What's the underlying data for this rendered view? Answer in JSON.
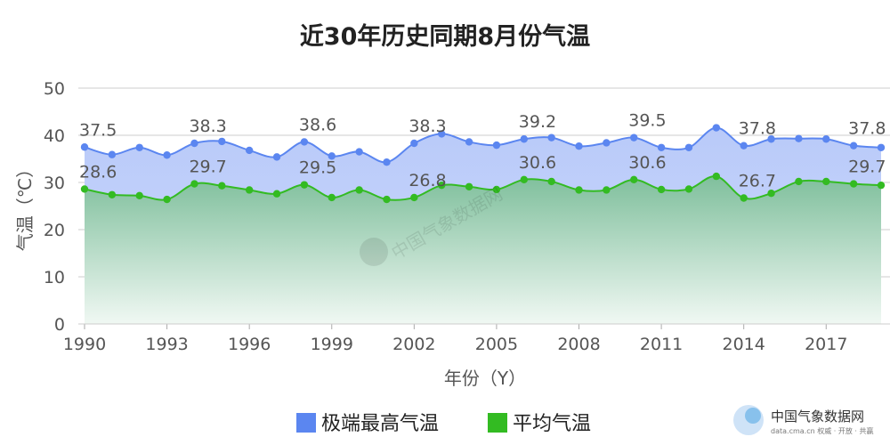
{
  "chart_data": {
    "type": "area",
    "title": "近30年历史同期8月份气温",
    "xlabel": "年份（Y）",
    "ylabel": "气温（℃）",
    "ylim": [
      0,
      50
    ],
    "yticks": [
      0,
      10,
      20,
      30,
      40,
      50
    ],
    "x": [
      1990,
      1991,
      1992,
      1993,
      1994,
      1995,
      1996,
      1997,
      1998,
      1999,
      2000,
      2001,
      2002,
      2003,
      2004,
      2005,
      2006,
      2007,
      2008,
      2009,
      2010,
      2011,
      2012,
      2013,
      2014,
      2015,
      2016,
      2017,
      2018,
      2019
    ],
    "xticks": [
      1990,
      1993,
      1996,
      1999,
      2002,
      2005,
      2008,
      2011,
      2014,
      2017
    ],
    "grid": true,
    "legend_position": "bottom-center",
    "series": [
      {
        "name": "极端最高气温",
        "color": "#5b86f0",
        "fill": "#c3d1fb",
        "values": [
          37.5,
          35.9,
          37.4,
          35.8,
          38.3,
          38.7,
          36.8,
          35.4,
          38.6,
          35.6,
          36.5,
          34.3,
          38.3,
          40.3,
          38.6,
          37.9,
          39.2,
          39.5,
          37.7,
          38.4,
          39.5,
          37.4,
          37.4,
          41.6,
          37.8,
          39.2,
          39.3,
          39.2,
          37.8,
          37.4
        ],
        "labels": [
          {
            "x": 1990,
            "text": "37.5"
          },
          {
            "x": 1994,
            "text": "38.3"
          },
          {
            "x": 1998,
            "text": "38.6"
          },
          {
            "x": 2002,
            "text": "38.3"
          },
          {
            "x": 2006,
            "text": "39.2"
          },
          {
            "x": 2010,
            "text": "39.5"
          },
          {
            "x": 2014,
            "text": "37.8"
          },
          {
            "x": 2018,
            "text": "37.8"
          }
        ]
      },
      {
        "name": "平均气温",
        "color": "#33bb22",
        "fill": "#94cbae",
        "values": [
          28.6,
          27.4,
          27.2,
          26.4,
          29.7,
          29.3,
          28.4,
          27.6,
          29.5,
          26.8,
          28.4,
          26.4,
          26.8,
          29.4,
          29.1,
          28.5,
          30.6,
          30.2,
          28.4,
          28.4,
          30.6,
          28.5,
          28.6,
          31.3,
          26.7,
          27.7,
          30.2,
          30.2,
          29.7,
          29.4
        ],
        "labels": [
          {
            "x": 1990,
            "text": "28.6"
          },
          {
            "x": 1994,
            "text": "29.7"
          },
          {
            "x": 1998,
            "text": "29.5"
          },
          {
            "x": 2002,
            "text": "26.8"
          },
          {
            "x": 2006,
            "text": "30.6"
          },
          {
            "x": 2010,
            "text": "30.6"
          },
          {
            "x": 2014,
            "text": "26.7"
          },
          {
            "x": 2018,
            "text": "29.7"
          }
        ]
      }
    ]
  },
  "watermark": {
    "text": "中国气象数据网"
  },
  "brand": {
    "name": "中国气象数据网",
    "sub": "data.cma.cn 权威 · 开放 · 共赢"
  }
}
